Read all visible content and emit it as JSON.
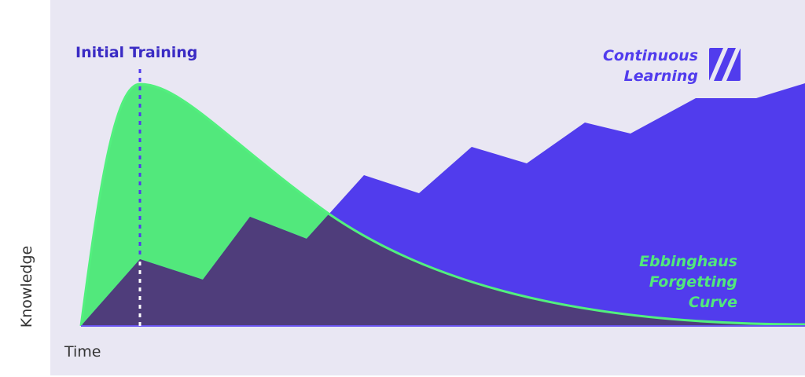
{
  "labels": {
    "initial_training": "Initial Training",
    "continuous_learning": [
      "Continuous",
      "Learning"
    ],
    "ebbinghaus": [
      "Ebbinghaus",
      "Forgetting",
      "Curve"
    ],
    "x_axis": "Time",
    "y_axis": "Knowledge"
  },
  "logo": {
    "icon": "slanted-n-logo-icon"
  },
  "colors": {
    "background": "#e9e7f3",
    "continuous_learning": "#513ced",
    "forgetting_curve": "#52e87c",
    "overlap": "#4f3d7b",
    "initial_training_label": "#3a2bc4"
  }
}
